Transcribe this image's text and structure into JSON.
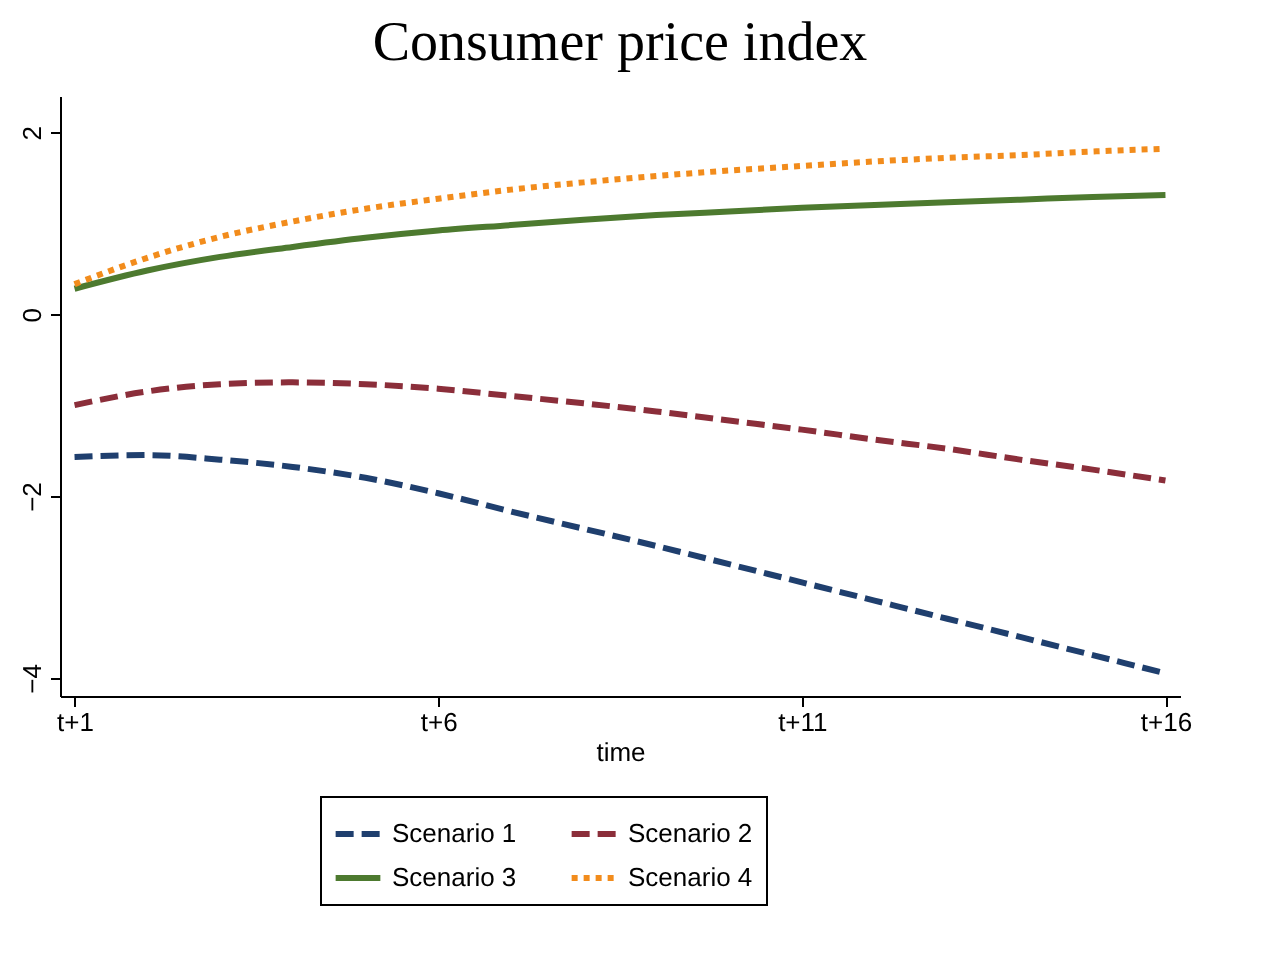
{
  "chart_data": {
    "type": "line",
    "title": "Consumer price index",
    "xlabel": "time",
    "categories": [
      "t+1",
      null,
      null,
      null,
      null,
      "t+6",
      null,
      null,
      null,
      null,
      "t+11",
      null,
      null,
      null,
      null,
      "t+16"
    ],
    "ylim": [
      -4.2,
      2.4
    ],
    "yticks": [
      -4,
      -2,
      0,
      2
    ],
    "grid": false,
    "legend": "bottom",
    "series": [
      {
        "name": "Scenario 1",
        "color": "#1f3f6e",
        "line_style": "dashed",
        "values": [
          -1.57,
          -1.55,
          -1.6,
          -1.68,
          -1.8,
          -1.97,
          -2.17,
          -2.36,
          -2.55,
          -2.75,
          -2.95,
          -3.15,
          -3.35,
          -3.55,
          -3.75,
          -3.95
        ]
      },
      {
        "name": "Scenario 2",
        "color": "#8b2e3a",
        "line_style": "dashed",
        "values": [
          -1.0,
          -0.85,
          -0.77,
          -0.75,
          -0.77,
          -0.82,
          -0.9,
          -0.98,
          -1.07,
          -1.17,
          -1.27,
          -1.38,
          -1.48,
          -1.6,
          -1.71,
          -1.83
        ]
      },
      {
        "name": "Scenario 3",
        "color": "#4d7a2f",
        "line_style": "solid",
        "values": [
          0.28,
          0.48,
          0.63,
          0.74,
          0.84,
          0.92,
          0.98,
          1.04,
          1.09,
          1.13,
          1.17,
          1.2,
          1.23,
          1.26,
          1.29,
          1.31
        ]
      },
      {
        "name": "Scenario 4",
        "color": "#f28c1c",
        "line_style": "dotted",
        "values": [
          0.33,
          0.62,
          0.85,
          1.02,
          1.16,
          1.27,
          1.37,
          1.45,
          1.52,
          1.58,
          1.63,
          1.68,
          1.72,
          1.75,
          1.79,
          1.82
        ]
      }
    ]
  }
}
